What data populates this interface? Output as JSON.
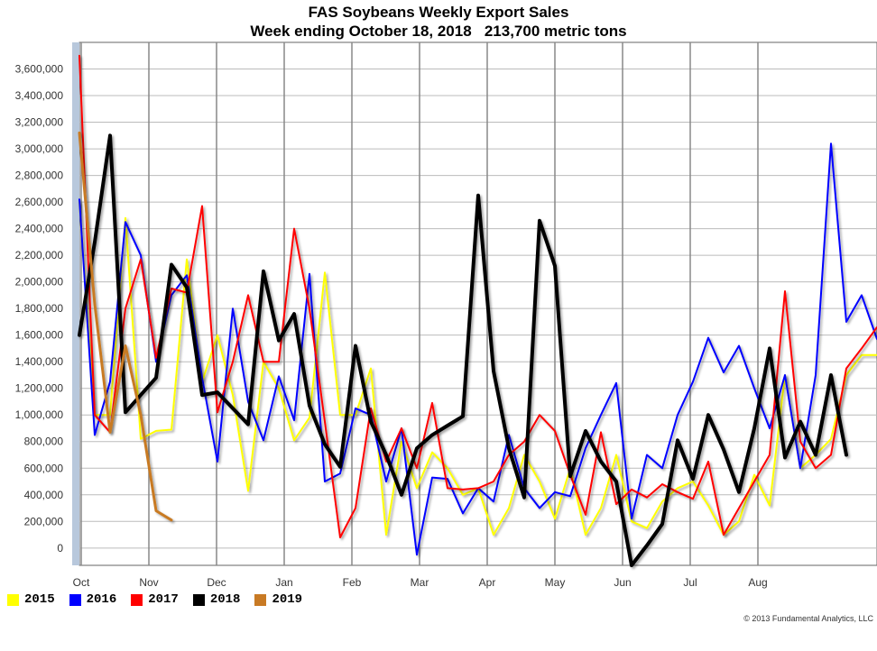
{
  "chart_data": {
    "type": "line",
    "title": "FAS Soybeans Weekly Export Sales",
    "subtitle": "Week ending October 18, 2018   213,700 metric tons",
    "ylim": [
      -130000,
      3800000
    ],
    "y_ticks": [
      0,
      200000,
      400000,
      600000,
      800000,
      1000000,
      1200000,
      1400000,
      1600000,
      1800000,
      2000000,
      2200000,
      2400000,
      2600000,
      2800000,
      3000000,
      3200000,
      3400000,
      3600000
    ],
    "y_tick_labels": [
      "0",
      "200,000",
      "400,000",
      "600,000",
      "800,000",
      "1,000,000",
      "1,200,000",
      "1,400,000",
      "1,600,000",
      "1,800,000",
      "2,000,000",
      "2,200,000",
      "2,400,000",
      "2,600,000",
      "2,800,000",
      "3,000,000",
      "3,200,000",
      "3,400,000",
      "3,600,000"
    ],
    "x_ticks": [
      "Oct",
      "Nov",
      "Dec",
      "Jan",
      "Feb",
      "Mar",
      "Apr",
      "May",
      "Jun",
      "Jul",
      "Aug"
    ],
    "x_start": 0,
    "x_end": 52,
    "grid": true,
    "legend_position": "bottom-left",
    "series": [
      {
        "name": "2015",
        "color": "#ffff00",
        "width": 2,
        "values": [
          2600000,
          1000000,
          1000000,
          2480000,
          820000,
          880000,
          890000,
          2170000,
          1250000,
          1600000,
          1150000,
          430000,
          1400000,
          1200000,
          810000,
          980000,
          2070000,
          1000000,
          1000000,
          1350000,
          100000,
          800000,
          450000,
          720000,
          600000,
          400000,
          450000,
          100000,
          300000,
          700000,
          500000,
          220000,
          600000,
          100000,
          300000,
          700000,
          200000,
          150000,
          350000,
          450000,
          500000,
          320000,
          100000,
          200000,
          550000,
          320000,
          1300000,
          600000,
          700000,
          820000,
          1300000,
          1450000,
          1450000
        ]
      },
      {
        "name": "2016",
        "color": "#0000ff",
        "width": 2,
        "values": [
          2620000,
          850000,
          1250000,
          2450000,
          2200000,
          1400000,
          1900000,
          2050000,
          1280000,
          650000,
          1800000,
          1100000,
          810000,
          1290000,
          960000,
          2060000,
          500000,
          560000,
          1050000,
          1000000,
          500000,
          900000,
          -50000,
          530000,
          520000,
          260000,
          450000,
          350000,
          850000,
          450000,
          300000,
          420000,
          390000,
          750000,
          1000000,
          1240000,
          220000,
          700000,
          600000,
          1000000,
          1250000,
          1580000,
          1320000,
          1520000,
          1200000,
          900000,
          1300000,
          600000,
          1300000,
          3040000,
          1700000,
          1900000,
          1570000
        ]
      },
      {
        "name": "2017",
        "color": "#ff0000",
        "width": 2,
        "values": [
          3700000,
          1000000,
          870000,
          1800000,
          2170000,
          1430000,
          1950000,
          1920000,
          2570000,
          1020000,
          1400000,
          1900000,
          1400000,
          1400000,
          2400000,
          1800000,
          950000,
          80000,
          300000,
          1050000,
          650000,
          900000,
          600000,
          1090000,
          450000,
          440000,
          450000,
          500000,
          700000,
          800000,
          1000000,
          880000,
          550000,
          250000,
          870000,
          330000,
          440000,
          380000,
          480000,
          420000,
          370000,
          650000,
          100000,
          300000,
          500000,
          700000,
          1930000,
          800000,
          600000,
          700000,
          1350000,
          1500000,
          1660000
        ]
      },
      {
        "name": "2018",
        "color": "#000000",
        "width": 4,
        "values": [
          1600000,
          2300000,
          3100000,
          1020000,
          1150000,
          1280000,
          2130000,
          1960000,
          1150000,
          1170000,
          1050000,
          930000,
          2080000,
          1560000,
          1760000,
          1070000,
          780000,
          610000,
          1520000,
          950000,
          700000,
          400000,
          750000,
          850000,
          920000,
          990000,
          2650000,
          1330000,
          750000,
          380000,
          2460000,
          2120000,
          540000,
          880000,
          650000,
          500000,
          -130000,
          20000,
          180000,
          810000,
          520000,
          1000000,
          740000,
          420000,
          900000,
          1500000,
          680000,
          950000,
          700000,
          1300000,
          700000
        ],
        "shadow": true
      },
      {
        "name": "2019",
        "color": "#c87a24",
        "width": 3,
        "values": [
          3120000,
          1830000,
          870000,
          1520000,
          1000000,
          280000,
          210000
        ]
      }
    ]
  },
  "copyright": "© 2013 Fundamental Analytics, LLC"
}
